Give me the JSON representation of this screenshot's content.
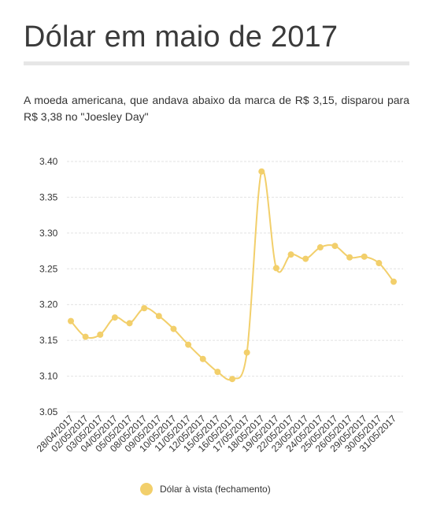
{
  "title": "Dólar em maio de 2017",
  "subtitle": "A moeda americana, que andava abaixo da marca de R$ 3,15, disparou para R$ 3,38 no \"Joesley Day\"",
  "colors": {
    "series": "#f2cf6b",
    "grid": "#e2e2e2",
    "rule": "#e6e6e6"
  },
  "chart_data": {
    "type": "line",
    "x": [
      "28/04/2017",
      "02/05/2017",
      "03/05/2017",
      "04/05/2017",
      "05/05/2017",
      "08/05/2017",
      "09/05/2017",
      "10/05/2017",
      "11/05/2017",
      "12/05/2017",
      "15/05/2017",
      "16/05/2017",
      "17/05/2017",
      "18/05/2017",
      "19/05/2017",
      "22/05/2017",
      "23/05/2017",
      "24/05/2017",
      "25/05/2017",
      "26/05/2017",
      "29/05/2017",
      "30/05/2017",
      "31/05/2017"
    ],
    "series": [
      {
        "name": "Dólar à vista (fechamento)",
        "values": [
          3.177,
          3.155,
          3.158,
          3.182,
          3.174,
          3.195,
          3.184,
          3.166,
          3.144,
          3.124,
          3.106,
          3.096,
          3.133,
          3.386,
          3.251,
          3.27,
          3.264,
          3.28,
          3.282,
          3.266,
          3.267,
          3.258,
          3.232
        ]
      }
    ],
    "y_ticks": [
      "3.05",
      "3.10",
      "3.15",
      "3.20",
      "3.25",
      "3.30",
      "3.35",
      "3.40"
    ],
    "ylim": [
      3.05,
      3.4
    ],
    "grid": true,
    "legend": "bottom-center"
  }
}
